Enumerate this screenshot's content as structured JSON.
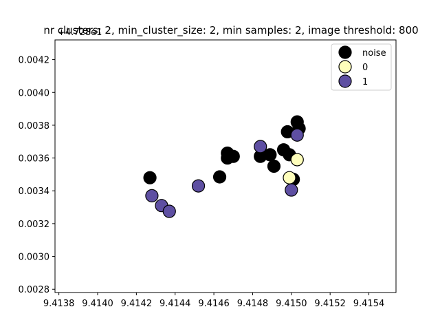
{
  "chart_data": {
    "type": "scatter",
    "title": "nr clusters: 2, min_cluster_size: 2, min samples: 2, image threshold: 800",
    "xlabel": "",
    "ylabel": "",
    "y_offset_label": "+4.728e1",
    "xlim": [
      9.41378,
      9.41554
    ],
    "ylim": [
      0.00278,
      0.00432
    ],
    "x_ticks": [
      9.4138,
      9.414,
      9.4142,
      9.4144,
      9.4146,
      9.4148,
      9.415,
      9.4152,
      9.4154
    ],
    "x_tick_labels": [
      "9.4138",
      "9.4140",
      "9.4142",
      "9.4144",
      "9.4146",
      "9.4148",
      "9.4150",
      "9.4152",
      "9.4154"
    ],
    "y_ticks": [
      0.0028,
      0.003,
      0.0032,
      0.0034,
      0.0036,
      0.0038,
      0.004,
      0.0042
    ],
    "y_tick_labels": [
      "0.0028",
      "0.0030",
      "0.0032",
      "0.0034",
      "0.0036",
      "0.0038",
      "0.0040",
      "0.0042"
    ],
    "grid": false,
    "legend_position": "top-right",
    "series": [
      {
        "name": "noise",
        "color": "#000000",
        "points": [
          {
            "x": 9.41427,
            "y": 0.00348
          },
          {
            "x": 9.41463,
            "y": 0.003485
          },
          {
            "x": 9.41467,
            "y": 0.00363
          },
          {
            "x": 9.41467,
            "y": 0.0036
          },
          {
            "x": 9.4147,
            "y": 0.00361
          },
          {
            "x": 9.41484,
            "y": 0.00361
          },
          {
            "x": 9.41489,
            "y": 0.00362
          },
          {
            "x": 9.41491,
            "y": 0.00355
          },
          {
            "x": 9.41496,
            "y": 0.00365
          },
          {
            "x": 9.41498,
            "y": 0.00376
          },
          {
            "x": 9.41499,
            "y": 0.00362
          },
          {
            "x": 9.41503,
            "y": 0.00382
          },
          {
            "x": 9.41504,
            "y": 0.00378
          },
          {
            "x": 9.41501,
            "y": 0.00347
          }
        ]
      },
      {
        "name": "0",
        "color": "#fefebb",
        "points": [
          {
            "x": 9.41503,
            "y": 0.00359
          },
          {
            "x": 9.41499,
            "y": 0.00348
          }
        ]
      },
      {
        "name": "1",
        "color": "#5e4fa2",
        "points": [
          {
            "x": 9.41428,
            "y": 0.00337
          },
          {
            "x": 9.41433,
            "y": 0.00331
          },
          {
            "x": 9.41437,
            "y": 0.003275
          },
          {
            "x": 9.41452,
            "y": 0.00343
          },
          {
            "x": 9.41484,
            "y": 0.00367
          },
          {
            "x": 9.41503,
            "y": 0.00374
          },
          {
            "x": 9.415,
            "y": 0.003405
          }
        ]
      }
    ]
  }
}
